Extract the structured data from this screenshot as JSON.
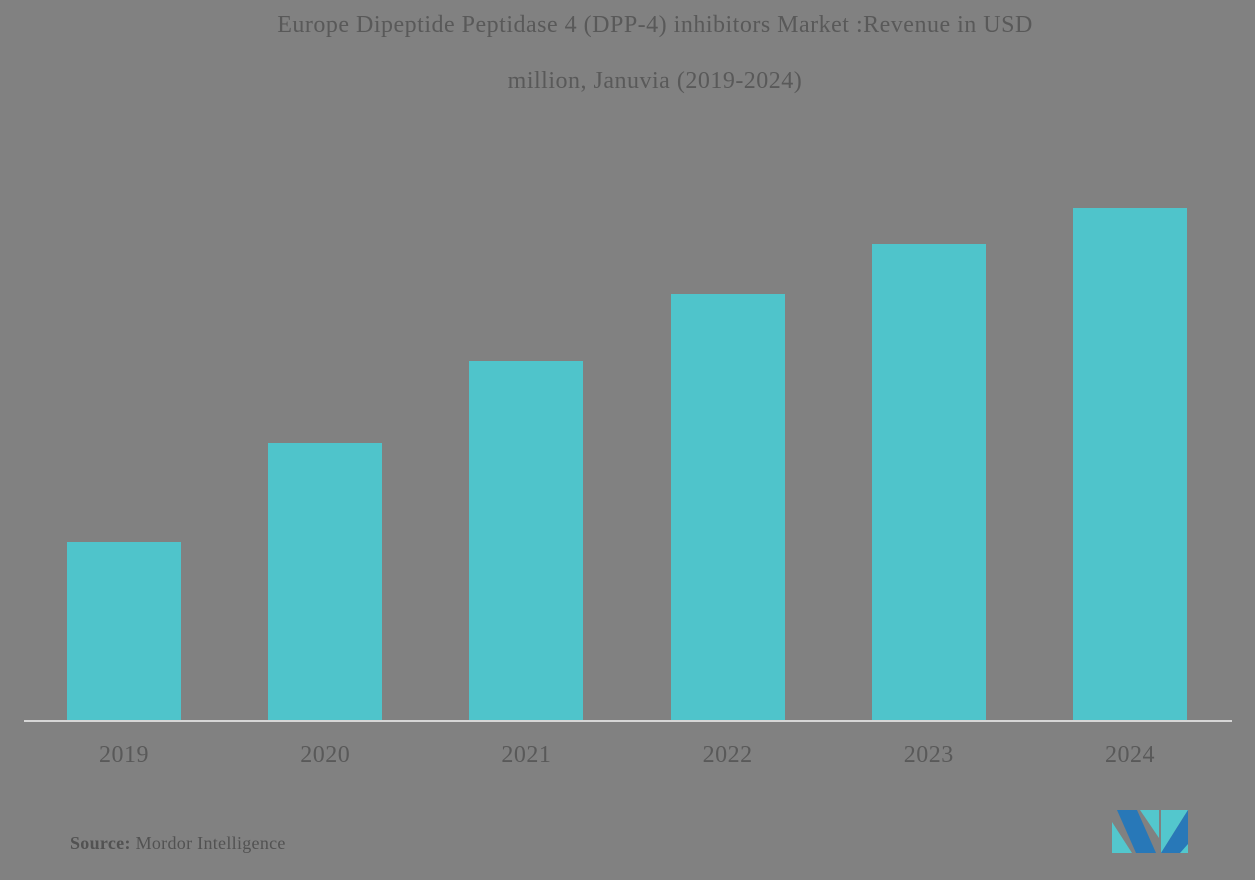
{
  "title": {
    "line1": "Europe Dipeptide Peptidase 4 (DPP-4) inhibitors Market :Revenue in USD",
    "line2": "million, Januvia (2019-2024)"
  },
  "source": {
    "label": "Source:",
    "brand": " Mordor Intelligence"
  },
  "logo": {
    "name": "mordor-intelligence-logo"
  },
  "colors": {
    "background": "#818181",
    "bar": "#4fc4cb",
    "axis_line": "#d6d6d6",
    "title_text": "#595959",
    "label_text": "#595959",
    "source_text": "#525252",
    "logo_teal": "#53c7cd",
    "logo_blue": "#2878b8"
  },
  "chart_data": {
    "type": "bar",
    "title": "Europe Dipeptide Peptidase 4 (DPP-4) inhibitors Market :Revenue in USD million, Januvia (2019-2024)",
    "categories": [
      "2019",
      "2020",
      "2021",
      "2022",
      "2023",
      "2024"
    ],
    "values": [
      0.348,
      0.541,
      0.701,
      0.832,
      0.93,
      1.0
    ],
    "note": "No y-axis, gridlines or data labels are shown in the image; values are bar heights relative to the tallest (2024) bar = 1.0",
    "xlabel": "",
    "ylabel": "",
    "legend": false,
    "grid": false,
    "bar_color": "#4fc4cb",
    "background_color": "#818181"
  }
}
